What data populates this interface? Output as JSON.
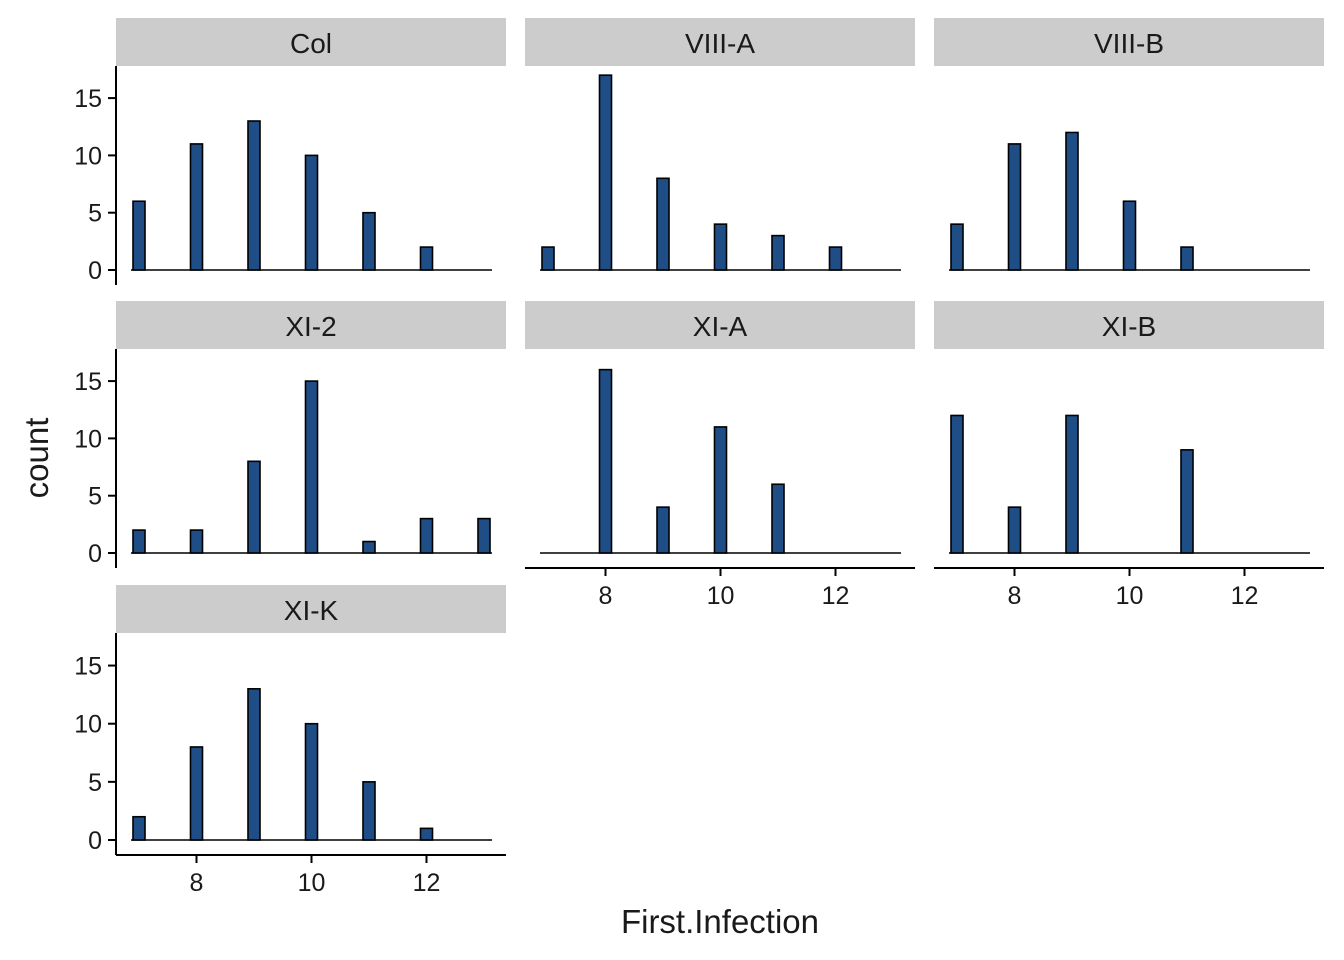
{
  "chart_data": {
    "type": "bar",
    "xlabel": "First.Infection",
    "ylabel": "count",
    "xlim": [
      6.8,
      13.2
    ],
    "ylim": [
      0,
      17.8
    ],
    "x_ticks": [
      8,
      10,
      12
    ],
    "y_ticks": [
      0,
      5,
      10,
      15
    ],
    "bar_color": "#1f4e86",
    "bar_outline": "#000000",
    "strip_color": "#cccccc",
    "grid": false,
    "panels": [
      {
        "label": "Col",
        "x": [
          7,
          8,
          9,
          10,
          11,
          12
        ],
        "values": [
          6,
          11,
          13,
          10,
          5,
          2
        ]
      },
      {
        "label": "VIII-A",
        "x": [
          7,
          8,
          9,
          10,
          11,
          12
        ],
        "values": [
          2,
          17,
          8,
          4,
          3,
          2
        ]
      },
      {
        "label": "VIII-B",
        "x": [
          7,
          8,
          9,
          10,
          11
        ],
        "values": [
          4,
          11,
          12,
          6,
          2
        ]
      },
      {
        "label": "XI-2",
        "x": [
          7,
          8,
          9,
          10,
          11,
          12,
          13
        ],
        "values": [
          2,
          2,
          8,
          15,
          1,
          3,
          3
        ]
      },
      {
        "label": "XI-A",
        "x": [
          8,
          9,
          10,
          11
        ],
        "values": [
          16,
          4,
          11,
          6
        ]
      },
      {
        "label": "XI-B",
        "x": [
          7,
          8,
          9,
          11
        ],
        "values": [
          12,
          4,
          12,
          9
        ]
      },
      {
        "label": "XI-K",
        "x": [
          7,
          8,
          9,
          10,
          11,
          12
        ],
        "values": [
          2,
          8,
          13,
          10,
          5,
          1
        ]
      }
    ]
  }
}
